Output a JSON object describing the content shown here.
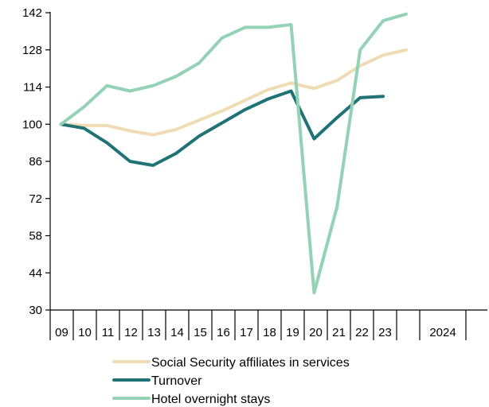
{
  "chart_data": {
    "type": "line",
    "x": [
      "09",
      "10",
      "11",
      "12",
      "13",
      "14",
      "15",
      "16",
      "17",
      "18",
      "19",
      "20",
      "21",
      "22",
      "23",
      "24"
    ],
    "x_tick_labels": [
      "09",
      "10",
      "11",
      "12",
      "13",
      "14",
      "15",
      "16",
      "17",
      "18",
      "19",
      "20",
      "21",
      "22",
      "23",
      "2024"
    ],
    "ylim": [
      30,
      142
    ],
    "yticks": [
      30,
      44,
      58,
      72,
      86,
      100,
      114,
      128,
      142
    ],
    "grid": false,
    "legend_placement": "bottom",
    "series": [
      {
        "name": "Social Security affiliates in services",
        "color": "#efdcb5",
        "values": [
          100,
          99.5,
          99.5,
          97.5,
          96,
          98,
          101.5,
          105,
          109,
          113,
          115.5,
          113.5,
          116.5,
          122,
          126,
          128
        ]
      },
      {
        "name": "Turnover",
        "color": "#1f7275",
        "values": [
          100,
          98.5,
          93,
          86,
          84.5,
          89,
          95.5,
          100.5,
          105.5,
          109.5,
          112.5,
          94.5,
          102.5,
          110,
          110.5,
          null
        ]
      },
      {
        "name": "Hotel overnight stays",
        "color": "#93d2b4",
        "values": [
          100,
          106.5,
          114.5,
          112.5,
          114.5,
          118,
          123,
          132.5,
          136.5,
          136.5,
          137.5,
          36.5,
          69,
          128,
          139,
          141.5
        ]
      }
    ]
  }
}
